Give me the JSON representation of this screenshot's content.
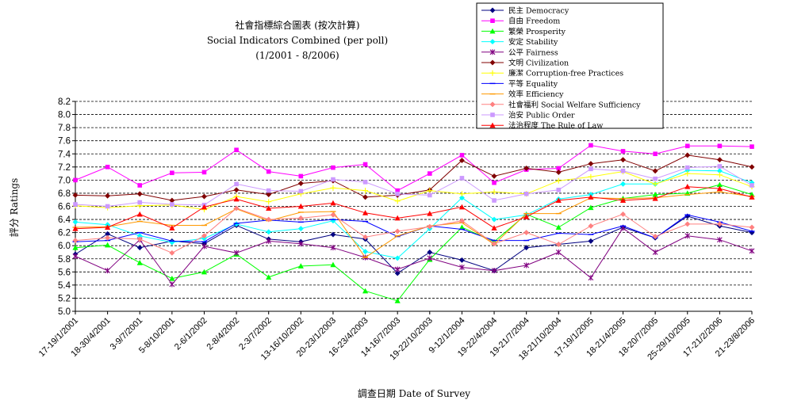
{
  "chart_data": {
    "type": "line",
    "title": [
      "社會指標綜合圖表 (按次計算)",
      "Social Indicators Combined (per poll)",
      "(1/2001 - 8/2006)"
    ],
    "xlabel": "調查日期 Date of Survey",
    "ylabel": "評分 Ratings",
    "ylim": [
      5.0,
      8.2
    ],
    "yticks": [
      "5.0",
      "5.2",
      "5.4",
      "5.6",
      "5.8",
      "6.0",
      "6.2",
      "6.4",
      "6.6",
      "6.8",
      "7.0",
      "7.2",
      "7.4",
      "7.6",
      "7.8",
      "8.0",
      "8.2"
    ],
    "grid": "horizontal dashed",
    "legend": "top-right",
    "x_tick_labels": [
      "17-19/1/2001",
      "18-30/4/2001",
      "3-9/7/2001",
      "5-8/10/2001",
      "2-6/1/2002",
      "2-8/4/2002",
      "2-3/7/2002",
      "13-16/10/2002",
      "20-23/1/2003",
      "16-23/4/2003",
      "14-16/7/2003",
      "19-22/10/2003",
      "9-12/1/2004",
      "19-22/4/2004",
      "19-21/7/2004",
      "18-21/10/2004",
      "17-19/1/2005",
      "18-21/4/2005",
      "18-20/7/2005",
      "25-29/10/2005",
      "17-21/2/2006",
      "21-23/8/2006"
    ],
    "series": [
      {
        "name": "民主 Democracy",
        "color": "#000080",
        "marker": "diamond",
        "values": [
          5.87,
          6.18,
          5.97,
          6.07,
          6.03,
          6.31,
          6.1,
          6.06,
          6.17,
          6.1,
          5.58,
          5.9,
          5.78,
          5.62,
          5.97,
          6.02,
          6.07,
          6.28,
          6.12,
          6.45,
          6.3,
          6.2
        ]
      },
      {
        "name": "自由 Freedom",
        "color": "#ff00ff",
        "marker": "square",
        "values": [
          7.0,
          7.2,
          6.92,
          7.11,
          7.12,
          7.46,
          7.13,
          7.06,
          7.19,
          7.24,
          6.84,
          7.1,
          7.38,
          6.96,
          7.16,
          7.18,
          7.53,
          7.44,
          7.4,
          7.52,
          7.52,
          7.51
        ]
      },
      {
        "name": "繁榮 Prosperity",
        "color": "#00ff00",
        "marker": "triangle",
        "values": [
          5.97,
          6.01,
          5.74,
          5.5,
          5.6,
          5.87,
          5.52,
          5.69,
          5.71,
          5.31,
          5.16,
          5.79,
          6.28,
          6.06,
          6.48,
          6.28,
          6.58,
          6.72,
          6.78,
          6.8,
          6.93,
          6.78
        ]
      },
      {
        "name": "安定 Stability",
        "color": "#00ffff",
        "marker": "diamond",
        "values": [
          6.36,
          6.32,
          6.15,
          6.05,
          6.11,
          6.33,
          6.21,
          6.26,
          6.38,
          5.91,
          5.81,
          6.26,
          6.73,
          6.4,
          6.47,
          6.71,
          6.78,
          6.94,
          6.94,
          7.15,
          7.14,
          6.96
        ]
      },
      {
        "name": "公平 Fairness",
        "color": "#800080",
        "marker": "star",
        "values": [
          5.84,
          5.62,
          6.09,
          5.41,
          5.99,
          5.89,
          6.07,
          6.03,
          5.97,
          5.82,
          5.64,
          5.81,
          5.67,
          5.62,
          5.7,
          5.9,
          5.51,
          6.27,
          5.9,
          6.15,
          6.09,
          5.92
        ]
      },
      {
        "name": "文明 Civilization",
        "color": "#800000",
        "marker": "diamond",
        "values": [
          6.77,
          6.76,
          6.79,
          6.69,
          6.75,
          6.85,
          6.78,
          6.95,
          6.99,
          6.74,
          6.77,
          6.85,
          7.3,
          7.06,
          7.18,
          7.12,
          7.25,
          7.31,
          7.14,
          7.38,
          7.31,
          7.2
        ]
      },
      {
        "name": "廉潔 Corruption-free Practices",
        "color": "#ffff00",
        "marker": "plus",
        "values": [
          6.61,
          6.58,
          6.61,
          6.62,
          6.55,
          6.75,
          6.67,
          6.79,
          6.88,
          6.84,
          6.68,
          6.84,
          6.79,
          6.82,
          6.79,
          6.99,
          7.05,
          7.13,
          6.94,
          7.1,
          7.08,
          6.9
        ]
      },
      {
        "name": "平等 Equality",
        "color": "#0000ff",
        "marker": "dash",
        "values": [
          6.06,
          6.08,
          6.2,
          6.07,
          6.06,
          6.34,
          6.39,
          6.36,
          6.4,
          6.37,
          6.14,
          6.3,
          6.25,
          6.08,
          6.08,
          6.19,
          6.17,
          6.3,
          6.12,
          6.47,
          6.36,
          6.22
        ]
      },
      {
        "name": "效率 Efficiency",
        "color": "#ff9900",
        "marker": "dash",
        "values": [
          6.28,
          6.29,
          6.37,
          6.31,
          6.31,
          6.56,
          6.38,
          6.51,
          6.52,
          5.82,
          6.15,
          6.3,
          6.35,
          6.02,
          6.49,
          6.49,
          6.73,
          6.72,
          6.73,
          6.78,
          6.82,
          6.75
        ]
      },
      {
        "name": "社會福利 Social Welfare Sufficiency",
        "color": "#ff8080",
        "marker": "diamond",
        "values": [
          6.08,
          6.12,
          6.1,
          5.89,
          6.15,
          6.57,
          6.4,
          6.42,
          6.47,
          6.13,
          6.22,
          6.29,
          6.38,
          6.03,
          6.2,
          6.02,
          6.3,
          6.48,
          6.14,
          6.33,
          6.33,
          6.28
        ]
      },
      {
        "name": "治安 Public Order",
        "color": "#cc99ff",
        "marker": "square",
        "values": [
          6.63,
          6.6,
          6.66,
          6.63,
          6.62,
          6.94,
          6.84,
          6.83,
          7.01,
          6.97,
          6.79,
          6.77,
          7.03,
          6.69,
          6.79,
          6.85,
          7.17,
          7.14,
          7.02,
          7.19,
          7.21,
          6.92
        ]
      },
      {
        "name": "法治程度 The Rule of Law",
        "color": "#ff0000",
        "marker": "triangle",
        "values": [
          6.26,
          6.28,
          6.48,
          6.27,
          6.59,
          6.71,
          6.57,
          6.6,
          6.65,
          6.5,
          6.42,
          6.49,
          6.59,
          6.27,
          6.44,
          6.69,
          6.74,
          6.69,
          6.72,
          6.9,
          6.87,
          6.74
        ]
      }
    ]
  }
}
